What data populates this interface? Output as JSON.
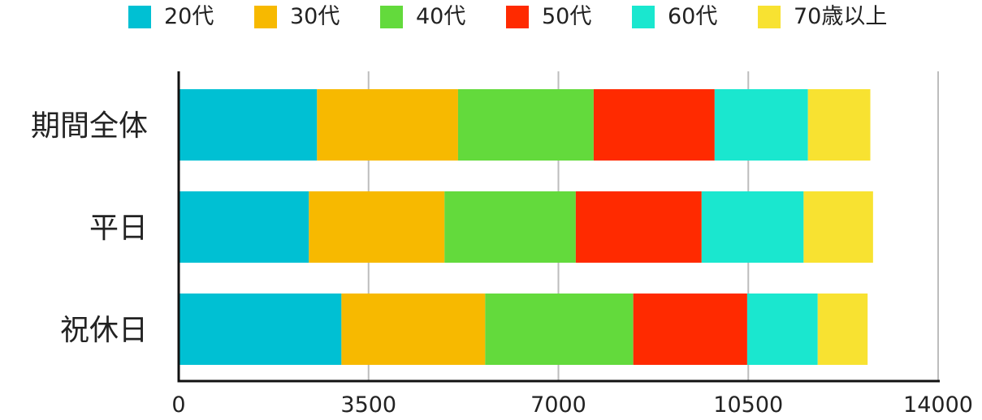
{
  "chart_data": {
    "type": "bar",
    "orientation": "horizontal",
    "stacked": true,
    "categories": [
      "期間全体",
      "平日",
      "祝休日"
    ],
    "series": [
      {
        "name": "20代",
        "color": "#00c0d3",
        "values": [
          2550,
          2400,
          3000
        ]
      },
      {
        "name": "30代",
        "color": "#f7b900",
        "values": [
          2600,
          2500,
          2650
        ]
      },
      {
        "name": "40代",
        "color": "#63da3c",
        "values": [
          2500,
          2420,
          2730
        ]
      },
      {
        "name": "50代",
        "color": "#ff2a00",
        "values": [
          2230,
          2320,
          2100
        ]
      },
      {
        "name": "60代",
        "color": "#1ae7cf",
        "values": [
          1720,
          1880,
          1300
        ]
      },
      {
        "name": "70歳以上",
        "color": "#f8e231",
        "values": [
          1150,
          1280,
          920
        ]
      }
    ],
    "xlim": [
      0,
      14000
    ],
    "xticks": [
      0,
      3500,
      7000,
      10500,
      14000
    ],
    "grid": true,
    "legend_position": "top"
  }
}
